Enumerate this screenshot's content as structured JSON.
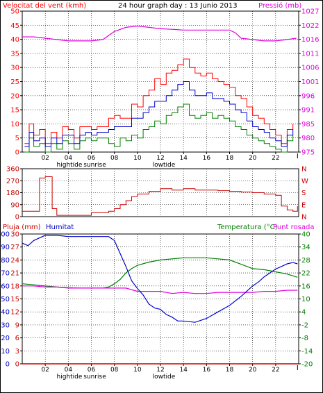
{
  "colors": {
    "wind_gust": "#ff0000",
    "wind_avg": "#0000cc",
    "wind_min": "#008000",
    "pressure": "#e000e0",
    "direction": "#cc0000",
    "rain": "#cc0000",
    "humidity": "#0000cc",
    "temperature": "#008000",
    "dewpoint": "#e000e0",
    "axis": "#000000",
    "grid": "#000000"
  },
  "chart_data": [
    {
      "type": "line",
      "title": "24 hour graph day : 13 Junio 2013",
      "ylabel_left": "Velocitat del vent (kmh)",
      "ylabel_right": "Pressió (mb)",
      "x_ticks": [
        "02",
        "04",
        "06",
        "08",
        "10",
        "12",
        "14",
        "16",
        "18",
        "20",
        "22"
      ],
      "x_annotations": [
        "hightide",
        "sunrise",
        "lowtide"
      ],
      "y_left_ticks": [
        "0",
        "5",
        "10",
        "15",
        "20",
        "25",
        "30",
        "35",
        "40",
        "45",
        "50"
      ],
      "y_left_range": [
        0,
        50
      ],
      "y_right_ticks": [
        "975",
        "980",
        "985",
        "991",
        "996",
        "1001",
        "1006",
        "1011",
        "1016",
        "1022",
        "1027"
      ],
      "y_right_range": [
        975,
        1027
      ],
      "series": [
        {
          "key": "gust",
          "x": [
            0.2,
            0.6,
            1.0,
            1.5,
            2.0,
            2.5,
            3.0,
            3.5,
            4.0,
            4.5,
            5.0,
            5.5,
            6.0,
            6.5,
            7.0,
            7.5,
            8.0,
            8.5,
            9.0,
            9.5,
            10.0,
            10.5,
            11.0,
            11.5,
            12.0,
            12.5,
            13.0,
            13.5,
            14.0,
            14.5,
            15.0,
            15.5,
            16.0,
            16.5,
            17.0,
            17.5,
            18.0,
            18.5,
            19.0,
            19.5,
            20.0,
            20.5,
            21.0,
            21.5,
            22.0,
            22.5,
            23.0,
            23.5
          ],
          "values": [
            3,
            10,
            6,
            8,
            3,
            7,
            5,
            9,
            8,
            5,
            9,
            9,
            8,
            9,
            9,
            12,
            13,
            12,
            12,
            17,
            16,
            20,
            22,
            26,
            24,
            28,
            29,
            31,
            33,
            30,
            28,
            27,
            28,
            26,
            25,
            24,
            23,
            20,
            19,
            16,
            13,
            12,
            10,
            8,
            6,
            3,
            8,
            10
          ]
        },
        {
          "key": "average",
          "x": [
            0.2,
            0.6,
            1.0,
            1.5,
            2.0,
            2.5,
            3.0,
            3.5,
            4.0,
            4.5,
            5.0,
            5.5,
            6.0,
            6.5,
            7.0,
            7.5,
            8.0,
            8.5,
            9.0,
            9.5,
            10.0,
            10.5,
            11.0,
            11.5,
            12.0,
            12.5,
            13.0,
            13.5,
            14.0,
            14.5,
            15.0,
            15.5,
            16.0,
            16.5,
            17.0,
            17.5,
            18.0,
            18.5,
            19.0,
            19.5,
            20.0,
            20.5,
            21.0,
            21.5,
            22.0,
            22.5,
            23.0,
            23.5
          ],
          "values": [
            2,
            7,
            4,
            5,
            2,
            5,
            3,
            6,
            6,
            3,
            6,
            7,
            6,
            7,
            7,
            8,
            9,
            9,
            9,
            12,
            12,
            14,
            16,
            18,
            18,
            20,
            22,
            24,
            25,
            22,
            20,
            20,
            21,
            19,
            19,
            18,
            17,
            15,
            14,
            11,
            9,
            8,
            7,
            5,
            4,
            2,
            6,
            8
          ]
        },
        {
          "key": "minimum",
          "x": [
            0.2,
            0.6,
            1.0,
            1.5,
            2.0,
            2.5,
            3.0,
            3.5,
            4.0,
            4.5,
            5.0,
            5.5,
            6.0,
            6.5,
            7.0,
            7.5,
            8.0,
            8.5,
            9.0,
            9.5,
            10.0,
            10.5,
            11.0,
            11.5,
            12.0,
            12.5,
            13.0,
            13.5,
            14.0,
            14.5,
            15.0,
            15.5,
            16.0,
            16.5,
            17.0,
            17.5,
            18.0,
            18.5,
            19.0,
            19.5,
            20.0,
            20.5,
            21.0,
            21.5,
            22.0,
            22.5,
            23.0,
            23.5
          ],
          "values": [
            0,
            5,
            2,
            3,
            0,
            3,
            1,
            4,
            3,
            1,
            4,
            5,
            4,
            5,
            5,
            3,
            2,
            5,
            4,
            6,
            5,
            8,
            9,
            11,
            10,
            13,
            14,
            16,
            17,
            13,
            12,
            13,
            14,
            12,
            13,
            12,
            11,
            9,
            8,
            6,
            5,
            4,
            3,
            2,
            1,
            0,
            4,
            6
          ]
        },
        {
          "key": "pressure",
          "axis": "right",
          "x": [
            0,
            1,
            2,
            3,
            4,
            5,
            6,
            7,
            7.5,
            8,
            9,
            10,
            11,
            12,
            13,
            14,
            15,
            16,
            17,
            18,
            18.5,
            19,
            20,
            21,
            22,
            23,
            23.8
          ],
          "values": [
            1017.5,
            1017.5,
            1017,
            1016.5,
            1016,
            1016,
            1016,
            1016.5,
            1018,
            1019.5,
            1021,
            1021.5,
            1021,
            1020.5,
            1020.3,
            1020,
            1020,
            1020,
            1020,
            1020,
            1019,
            1017,
            1016.5,
            1016,
            1016,
            1016.5,
            1017
          ]
        }
      ]
    },
    {
      "type": "line",
      "y_left_ticks": [
        "360",
        "270",
        "180",
        "90",
        "0"
      ],
      "y_left_range": [
        0,
        360
      ],
      "y_right_ticks": [
        "N",
        "W",
        "S",
        "E",
        "N"
      ],
      "series": [
        {
          "key": "direction",
          "x": [
            0,
            1.0,
            1.5,
            2.0,
            2.2,
            2.6,
            3.0,
            4.0,
            5.0,
            6.0,
            7.0,
            7.5,
            8.0,
            8.5,
            9.0,
            9.5,
            10.0,
            11.0,
            12.0,
            13.0,
            14.0,
            15.0,
            16.0,
            17.0,
            18.0,
            19.0,
            20.0,
            21.0,
            22.0,
            22.5,
            23.0,
            23.5,
            23.9
          ],
          "values": [
            40,
            40,
            290,
            300,
            300,
            60,
            10,
            10,
            10,
            30,
            30,
            40,
            60,
            90,
            120,
            150,
            170,
            190,
            210,
            200,
            210,
            200,
            200,
            195,
            190,
            185,
            180,
            170,
            160,
            80,
            50,
            40,
            80
          ]
        }
      ]
    },
    {
      "type": "line",
      "ylabel_left": "Pluja (mm)",
      "ylabel_left2": "Humitat",
      "ylabel_right": "Temperatura (°C)",
      "ylabel_right2": "Punt rosada",
      "x_ticks": [
        "02",
        "04",
        "06",
        "08",
        "10",
        "12",
        "14",
        "16",
        "18",
        "20",
        "22"
      ],
      "x_annotations": [
        "hightide",
        "sunrise",
        "lowtide"
      ],
      "y_rain_ticks": [
        "0",
        "3",
        "6",
        "9",
        "12",
        "15",
        "18",
        "21",
        "24",
        "27",
        "30"
      ],
      "y_rain_range": [
        0,
        30
      ],
      "y_hum_ticks": [
        "0",
        "10",
        "20",
        "30",
        "40",
        "50",
        "60",
        "70",
        "80",
        "90",
        "100"
      ],
      "y_hum_range": [
        0,
        100
      ],
      "y_temp_ticks": [
        "-20",
        "-14",
        "-8",
        "-2",
        "4",
        "10",
        "16",
        "22",
        "28",
        "34",
        "40"
      ],
      "y_temp_range": [
        -20,
        40
      ],
      "series": [
        {
          "key": "rain",
          "axis": "rain",
          "x": [
            0,
            24
          ],
          "values": [
            0,
            0
          ]
        },
        {
          "key": "humidity",
          "axis": "humidity",
          "x": [
            0,
            0.5,
            1,
            1.5,
            2,
            3,
            4,
            5,
            6,
            7,
            7.5,
            8,
            8.5,
            9,
            9.5,
            10,
            10.5,
            11,
            11.5,
            12,
            12.5,
            13,
            13.5,
            14,
            15,
            16,
            17,
            18,
            19,
            20,
            20.5,
            21,
            21.5,
            22,
            22.5,
            23,
            23.5,
            23.9
          ],
          "values": [
            93,
            91,
            95,
            97,
            99,
            99,
            98,
            98,
            98,
            98,
            98,
            95,
            85,
            75,
            64,
            58,
            53,
            46,
            43,
            42,
            38,
            36,
            33,
            33,
            32,
            35,
            40,
            45,
            52,
            60,
            63,
            67,
            70,
            73,
            75,
            77,
            78,
            77
          ]
        },
        {
          "key": "temperature",
          "axis": "temp",
          "x": [
            0,
            1,
            2,
            3,
            4,
            5,
            6,
            7,
            7.5,
            8,
            8.5,
            9,
            9.5,
            10,
            11,
            12,
            13,
            14,
            15,
            16,
            17,
            18,
            19,
            20,
            21,
            22,
            23,
            23.9
          ],
          "values": [
            17,
            16.5,
            16,
            15.5,
            15.2,
            15,
            15,
            15,
            15.5,
            17,
            19,
            22,
            24,
            25.5,
            27,
            28,
            28.5,
            29,
            29,
            29,
            28.5,
            28,
            26,
            24,
            23.5,
            22.5,
            21.5,
            20
          ]
        },
        {
          "key": "dewpoint",
          "axis": "temp",
          "x": [
            0,
            1,
            2,
            3,
            4,
            5,
            6,
            7,
            8,
            9,
            10,
            11,
            12,
            13,
            14,
            15,
            16,
            17,
            18,
            19,
            20,
            21,
            22,
            23,
            23.9
          ],
          "values": [
            16,
            16,
            15.5,
            15.5,
            15,
            15,
            15,
            15,
            15,
            15,
            13.5,
            13.5,
            13.5,
            12.5,
            13,
            12.5,
            12.5,
            13,
            13,
            13,
            13,
            13.5,
            13.5,
            14,
            14
          ]
        }
      ]
    }
  ]
}
